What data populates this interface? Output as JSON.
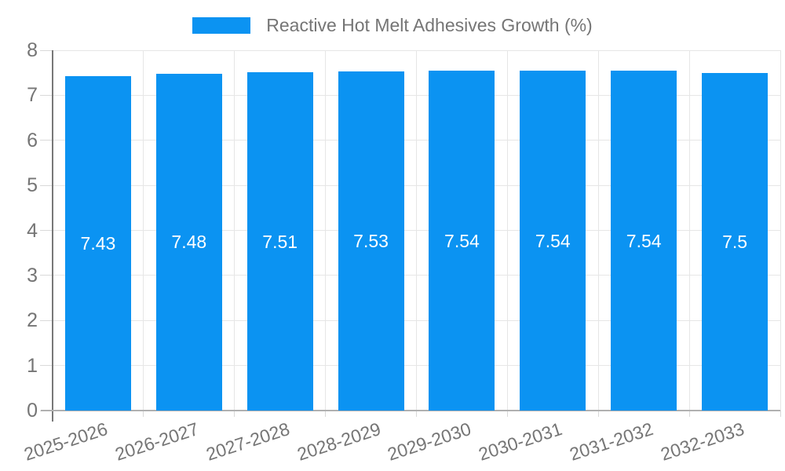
{
  "chart_data": {
    "type": "bar",
    "title": "",
    "legend": {
      "label": "Reactive Hot Melt Adhesives Growth (%)",
      "position": "top-center"
    },
    "categories": [
      "2025-2026",
      "2026-2027",
      "2027-2028",
      "2028-2029",
      "2029-2030",
      "2030-2031",
      "2031-2032",
      "2032-2033"
    ],
    "values": [
      7.43,
      7.48,
      7.51,
      7.53,
      7.54,
      7.54,
      7.54,
      7.5
    ],
    "value_labels": [
      "7.43",
      "7.48",
      "7.51",
      "7.53",
      "7.54",
      "7.54",
      "7.54",
      "7.5"
    ],
    "xlabel": "",
    "ylabel": "",
    "ylim": [
      0,
      8
    ],
    "yticks": [
      0,
      1,
      2,
      3,
      4,
      5,
      6,
      7,
      8
    ],
    "grid": true,
    "colors": {
      "bar": "#0b93f2",
      "grid": "#e6e6e6",
      "tick": "#d9d9d9",
      "y_axis_line": "#787878",
      "x_axis_line": "#b0b0b0",
      "axis_label": "#757575",
      "value_label": "#ffffff",
      "background": "#ffffff"
    }
  }
}
